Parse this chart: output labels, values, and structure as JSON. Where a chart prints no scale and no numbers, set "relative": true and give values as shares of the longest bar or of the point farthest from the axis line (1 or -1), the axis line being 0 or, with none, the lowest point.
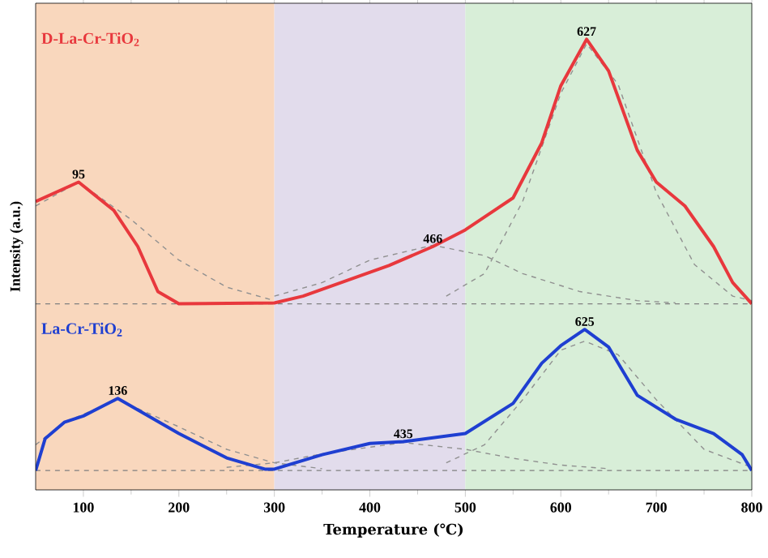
{
  "chart_data": {
    "type": "line",
    "relative": true,
    "xlabel": "Temperature (℃)",
    "ylabel": "Intensity (a.u.)",
    "xlim": [
      50,
      800
    ],
    "xticks": [
      100,
      200,
      300,
      400,
      500,
      600,
      700,
      800
    ],
    "tick_labels": "x",
    "bands": [
      {
        "axis": "x",
        "from": 50,
        "to": 300,
        "color": "#f9d7bd"
      },
      {
        "axis": "x",
        "from": 300,
        "to": 500,
        "color": "#e2dcec"
      },
      {
        "axis": "x",
        "from": 500,
        "to": 800,
        "color": "#d8eed8"
      }
    ],
    "ref_lines": [
      {
        "axis": "y",
        "value": 0.413,
        "color": "#808080",
        "line_style": "dashed"
      },
      {
        "axis": "y",
        "value": 0.043,
        "color": "#808080",
        "line_style": "dashed"
      }
    ],
    "series": [
      {
        "type": "line",
        "color": "#909090",
        "line_style": "dashed",
        "x": [
          50,
          95,
          150,
          200,
          250,
          300
        ],
        "values": [
          0.63,
          0.683,
          0.6,
          0.51,
          0.45,
          0.42
        ]
      },
      {
        "type": "line",
        "color": "#909090",
        "line_style": "dashed",
        "x": [
          300,
          350,
          400,
          466,
          520,
          560,
          620,
          680,
          720
        ],
        "values": [
          0.43,
          0.46,
          0.51,
          0.543,
          0.52,
          0.48,
          0.44,
          0.42,
          0.415
        ]
      },
      {
        "type": "line",
        "color": "#909090",
        "line_style": "dashed",
        "x": [
          480,
          520,
          560,
          600,
          627,
          660,
          700,
          740,
          780,
          800
        ],
        "values": [
          0.43,
          0.48,
          0.64,
          0.88,
          0.99,
          0.9,
          0.66,
          0.5,
          0.43,
          0.42
        ]
      },
      {
        "type": "line",
        "color": "#909090",
        "line_style": "dashed",
        "x": [
          50,
          80,
          136,
          200,
          250,
          300,
          350
        ],
        "values": [
          0.1,
          0.15,
          0.2,
          0.14,
          0.09,
          0.06,
          0.047
        ]
      },
      {
        "type": "line",
        "color": "#909090",
        "line_style": "dashed",
        "x": [
          250,
          300,
          350,
          435,
          500,
          550,
          600,
          650
        ],
        "values": [
          0.05,
          0.06,
          0.08,
          0.105,
          0.09,
          0.07,
          0.055,
          0.047
        ]
      },
      {
        "type": "line",
        "color": "#909090",
        "line_style": "dashed",
        "x": [
          480,
          520,
          560,
          600,
          625,
          660,
          700,
          750,
          800
        ],
        "values": [
          0.06,
          0.1,
          0.2,
          0.31,
          0.33,
          0.3,
          0.2,
          0.09,
          0.05
        ]
      },
      {
        "name": "D-La-Cr-TiO$_{2}$",
        "color": "#e8383d",
        "line_style": "solid",
        "x": [
          50,
          95,
          132,
          157,
          178,
          200,
          300,
          330,
          420,
          466,
          500,
          550,
          580,
          600,
          627,
          650,
          680,
          700,
          730,
          760,
          780,
          800
        ],
        "values": [
          0.64,
          0.683,
          0.62,
          0.54,
          0.44,
          0.413,
          0.415,
          0.43,
          0.498,
          0.54,
          0.577,
          0.648,
          0.77,
          0.897,
          1.0,
          0.93,
          0.754,
          0.683,
          0.63,
          0.54,
          0.46,
          0.413
        ]
      },
      {
        "name": "La-Cr-TiO$_{2}$",
        "color": "#1f3fd1",
        "line_style": "solid",
        "x": [
          50,
          60,
          80,
          100,
          136,
          200,
          250,
          290,
          300,
          350,
          400,
          435,
          500,
          550,
          580,
          600,
          625,
          650,
          680,
          720,
          760,
          790,
          800
        ],
        "values": [
          0.043,
          0.114,
          0.15,
          0.164,
          0.203,
          0.125,
          0.071,
          0.046,
          0.046,
          0.078,
          0.103,
          0.107,
          0.125,
          0.192,
          0.281,
          0.32,
          0.356,
          0.317,
          0.21,
          0.157,
          0.125,
          0.078,
          0.043
        ]
      }
    ],
    "annotations": [
      {
        "text": "95",
        "x": 95,
        "y": 0.683
      },
      {
        "text": "466",
        "x": 466,
        "y": 0.54
      },
      {
        "text": "627",
        "x": 627,
        "y": 1.0
      },
      {
        "text": "136",
        "x": 136,
        "y": 0.203
      },
      {
        "text": "435",
        "x": 435,
        "y": 0.107
      },
      {
        "text": "625",
        "x": 625,
        "y": 0.356
      }
    ]
  }
}
